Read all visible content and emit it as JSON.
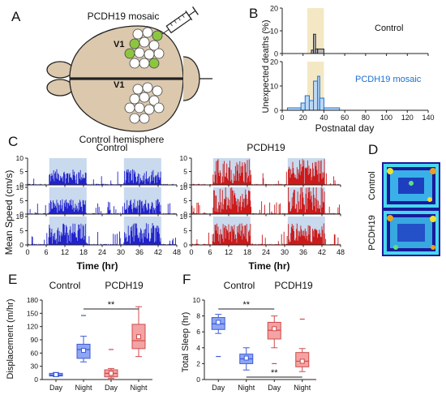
{
  "colors": {
    "control": "#2222cc",
    "pcdh19": "#cc1a1a",
    "night_shade": "#c9d9ee",
    "box_ctrl_fill": "#8fa6f5",
    "box_ctrl_stroke": "#3b5bd6",
    "box_pcdh_fill": "#f3a3a3",
    "box_pcdh_stroke": "#cf4b4b",
    "brain_fill": "#dcc8ad",
    "brain_stroke": "#222222",
    "cell_green": "#8cc63f",
    "mosaic_blue": "#1a6fd1",
    "highlight": "#f4e8c4"
  },
  "panels": {
    "A": {
      "letter": "A",
      "top_label": "PCDH19 mosaic",
      "v1_top": "V1",
      "v1_bottom": "V1",
      "bottom_label": "Control hemisphere",
      "icons": [
        "syringe-icon",
        "brain-diagram"
      ]
    },
    "B": {
      "letter": "B",
      "ylabel": "Unexpected deaths (%)",
      "xlabel": "Postnatal day",
      "top_series_label": "Control",
      "bottom_series_label": "PCDH19 mosaic"
    },
    "C": {
      "letter": "C",
      "ylabel": "Mean Speed (cm/s)",
      "xlabel": "Time (hr)",
      "title_control": "Control",
      "title_pcdh19": "PCDH19"
    },
    "D": {
      "letter": "D",
      "label_control": "Control",
      "label_pcdh19": "PCDH19"
    },
    "E": {
      "letter": "E",
      "ylabel": "Displacement (m/hr)",
      "group_control": "Control",
      "group_pcdh19": "PCDH19",
      "significance": "**"
    },
    "F": {
      "letter": "F",
      "ylabel": "Total Sleep (hr)",
      "group_control": "Control",
      "group_pcdh19": "PCDH19",
      "significance_top": "**",
      "significance_bottom": "**"
    }
  },
  "chart_data": [
    {
      "panel": "B-top",
      "type": "histogram",
      "series": [
        {
          "name": "Control",
          "bins": [
            [
              28,
              30,
              1.5
            ],
            [
              30,
              32,
              8.5
            ],
            [
              32,
              34,
              2
            ],
            [
              34,
              40,
              2
            ]
          ]
        }
      ],
      "xlim": [
        0,
        140
      ],
      "ylim": [
        0,
        20
      ],
      "yticks": [
        "0",
        "10",
        "20"
      ],
      "highlight_x": [
        24,
        40
      ]
    },
    {
      "panel": "B-bottom",
      "type": "histogram",
      "series": [
        {
          "name": "PCDH19 mosaic",
          "bins": [
            [
              5,
              18,
              1
            ],
            [
              18,
              22,
              3
            ],
            [
              22,
              26,
              6
            ],
            [
              26,
              30,
              4
            ],
            [
              30,
              34,
              12
            ],
            [
              34,
              36,
              14
            ],
            [
              36,
              40,
              5
            ],
            [
              40,
              55,
              1
            ]
          ]
        }
      ],
      "xlim": [
        0,
        140
      ],
      "xticks": [
        "0",
        "20",
        "40",
        "60",
        "80",
        "100",
        "120",
        "140"
      ],
      "ylim": [
        0,
        20
      ],
      "yticks": [
        "0",
        "10",
        "20"
      ],
      "highlight_x": [
        24,
        40
      ]
    },
    {
      "panel": "C",
      "type": "bar",
      "xlim": [
        0,
        48
      ],
      "xticks": [
        "0",
        "6",
        "12",
        "18",
        "24",
        "30",
        "36",
        "42",
        "48"
      ],
      "ylim": [
        0,
        10
      ],
      "yticks": [
        "0",
        "5",
        "10"
      ],
      "night_periods": [
        [
          7,
          19
        ],
        [
          31,
          43
        ]
      ],
      "day_level": 0.4,
      "series": [
        {
          "group": "Control",
          "row": 1,
          "night_level": 4.2
        },
        {
          "group": "Control",
          "row": 2,
          "night_level": 4.0
        },
        {
          "group": "Control",
          "row": 3,
          "night_level": 5.5
        },
        {
          "group": "PCDH19",
          "row": 1,
          "night_level": 7.0
        },
        {
          "group": "PCDH19",
          "row": 2,
          "night_level": 7.8
        },
        {
          "group": "PCDH19",
          "row": 3,
          "night_level": 5.5
        }
      ]
    },
    {
      "panel": "E",
      "type": "box",
      "categories": [
        "Day",
        "Night",
        "Day",
        "Night"
      ],
      "groups": [
        "Control",
        "Control",
        "PCDH19",
        "PCDH19"
      ],
      "ylim": [
        0,
        180
      ],
      "yticks": [
        "0",
        "30",
        "60",
        "90",
        "120",
        "150",
        "180"
      ],
      "boxes": [
        {
          "min": 7,
          "q1": 8,
          "median": 10,
          "q3": 14,
          "max": 16,
          "mean": 11
        },
        {
          "min": 40,
          "q1": 48,
          "median": 68,
          "q3": 80,
          "max": 98,
          "mean": 66,
          "outlier": 145
        },
        {
          "min": 3,
          "q1": 6,
          "median": 14,
          "q3": 22,
          "max": 25,
          "mean": 14,
          "outlier": 68
        },
        {
          "min": 52,
          "q1": 70,
          "median": 88,
          "q3": 125,
          "max": 165,
          "mean": 97
        }
      ]
    },
    {
      "panel": "F",
      "type": "box",
      "categories": [
        "Day",
        "Night",
        "Day",
        "Night"
      ],
      "groups": [
        "Control",
        "Control",
        "PCDH19",
        "PCDH19"
      ],
      "ylim": [
        0,
        10
      ],
      "yticks": [
        "0",
        "2",
        "4",
        "6",
        "8",
        "10"
      ],
      "boxes": [
        {
          "min": 5.8,
          "q1": 6.3,
          "median": 7.0,
          "q3": 7.8,
          "max": 8.2,
          "mean": 7.2,
          "outlier": 2.9
        },
        {
          "min": 1.2,
          "q1": 2.0,
          "median": 2.6,
          "q3": 3.2,
          "max": 4.0,
          "mean": 2.7
        },
        {
          "min": 4.0,
          "q1": 5.1,
          "median": 6.2,
          "q3": 7.2,
          "max": 8.0,
          "mean": 6.4,
          "outlier": 2.0
        },
        {
          "min": 1.0,
          "q1": 1.6,
          "median": 2.3,
          "q3": 3.4,
          "max": 3.9,
          "mean": 2.3,
          "outlier": 7.6
        }
      ]
    }
  ]
}
